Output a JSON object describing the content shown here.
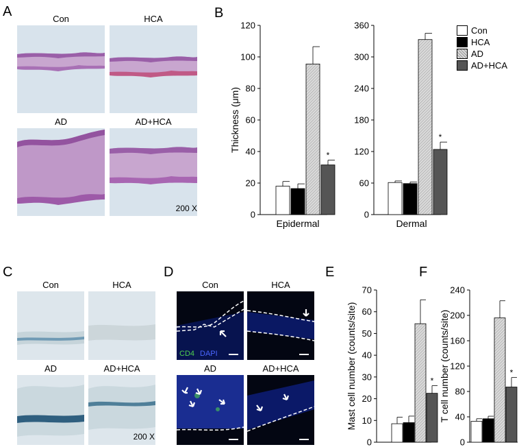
{
  "panels": {
    "A": {
      "letter": "A",
      "labels": [
        "Con",
        "HCA",
        "AD",
        "AD+HCA"
      ],
      "magnification": "200 X",
      "stain_colors": {
        "background": "#d8e3ec",
        "tissue": "#c8a6cf",
        "epidermis": "#9a5fa8"
      }
    },
    "B": {
      "letter": "B"
    },
    "C": {
      "letter": "C",
      "labels": [
        "Con",
        "HCA",
        "AD",
        "AD+HCA"
      ],
      "magnification": "200 X",
      "stain_colors": {
        "background": "#dde6ec",
        "tissue": "#c6d4da",
        "mast_cells": "#2f5f7f"
      }
    },
    "D": {
      "letter": "D",
      "labels": [
        "Con",
        "HCA",
        "AD",
        "AD+HCA"
      ],
      "legend_cd4": "CD4",
      "legend_dapi": "DAPI",
      "colors": {
        "background": "#030612",
        "nuclei": "#1f35a8",
        "cd4": "#4fd04f",
        "boundary": "#ffffff"
      }
    },
    "E": {
      "letter": "E"
    },
    "F": {
      "letter": "F"
    }
  },
  "chart_data": [
    {
      "id": "B-epidermal",
      "type": "bar",
      "categories": [
        "Con",
        "HCA",
        "AD",
        "AD+HCA"
      ],
      "values": [
        18,
        16.5,
        95.5,
        31.5
      ],
      "errors": [
        3,
        3,
        11,
        3
      ],
      "significance": [
        "",
        "",
        "",
        "*"
      ],
      "xlabel": "Epidermal",
      "ylabel": "Thickness (μm)",
      "ylim": [
        0,
        120
      ],
      "yticks": [
        0,
        20,
        40,
        60,
        80,
        100,
        120
      ]
    },
    {
      "id": "B-dermal",
      "type": "bar",
      "categories": [
        "Con",
        "HCA",
        "AD",
        "AD+HCA"
      ],
      "values": [
        61,
        59,
        333,
        124
      ],
      "errors": [
        3,
        3,
        12,
        14
      ],
      "significance": [
        "",
        "",
        "",
        "*"
      ],
      "xlabel": "Dermal",
      "ylabel": "",
      "ylim": [
        0,
        360
      ],
      "yticks": [
        0,
        60,
        120,
        180,
        240,
        300,
        360
      ]
    },
    {
      "id": "E",
      "type": "bar",
      "categories": [
        "Con",
        "HCA",
        "AD",
        "AD+HCA"
      ],
      "values": [
        8.5,
        9,
        54.5,
        22.5
      ],
      "errors": [
        3,
        3,
        11,
        3.5
      ],
      "significance": [
        "",
        "",
        "",
        "*"
      ],
      "xlabel": "",
      "ylabel": "Mast cell number (counts/site)",
      "ylim": [
        0,
        70
      ],
      "yticks": [
        0,
        10,
        20,
        30,
        40,
        50,
        60,
        70
      ]
    },
    {
      "id": "F",
      "type": "bar",
      "categories": [
        "Con",
        "HCA",
        "AD",
        "AD+HCA"
      ],
      "values": [
        33,
        37,
        196,
        87
      ],
      "errors": [
        4,
        4,
        27,
        15
      ],
      "significance": [
        "",
        "",
        "",
        "*"
      ],
      "xlabel": "",
      "ylabel": "T cell number (counts/site)",
      "ylim": [
        0,
        240
      ],
      "yticks": [
        0,
        40,
        80,
        120,
        160,
        200,
        240
      ]
    }
  ],
  "legend": {
    "items": [
      {
        "label": "Con",
        "style": "white"
      },
      {
        "label": "HCA",
        "style": "black"
      },
      {
        "label": "AD",
        "style": "hatch"
      },
      {
        "label": "AD+HCA",
        "style": "dark"
      }
    ]
  }
}
